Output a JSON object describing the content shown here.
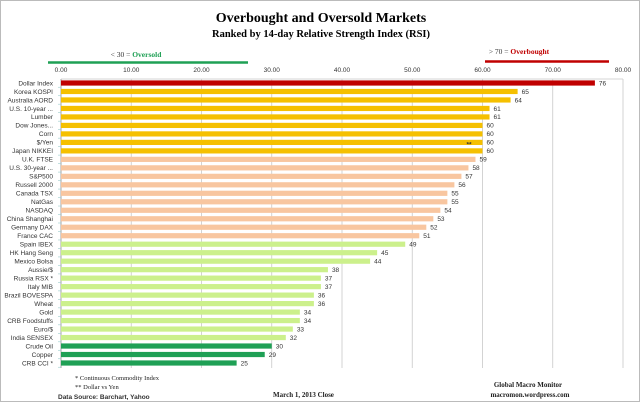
{
  "chart_data": {
    "type": "bar",
    "orientation": "horizontal",
    "title": "Overbought and Oversold Markets",
    "subtitle": "Ranked by 14-day Relative Strength Index (RSI)",
    "xlim": [
      0,
      80
    ],
    "x_ticks": [
      "0.00",
      "10.00",
      "20.00",
      "30.00",
      "40.00",
      "50.00",
      "60.00",
      "70.00",
      "80.00"
    ],
    "grid": true,
    "oversold_label": {
      "prefix": "< 30 = ",
      "word": "Oversold"
    },
    "overbought_label": {
      "prefix": "> 70 = ",
      "word": "Overbought"
    },
    "colors": {
      "overbought": "#c00000",
      "high": "#f5c000",
      "upper_mid": "#f8c6a0",
      "lower_mid": "#ccf08c",
      "oversold": "#1fa055",
      "oversold_text": "#1fa055",
      "overbought_text": "#c00000"
    },
    "categories": [
      "Dollar Index",
      "Korea KOSPI",
      "Australia AORD",
      "U.S. 10-year ...",
      "Lumber",
      "Dow Jones...",
      "Corn",
      "$/Yen",
      "Japan NIKKEI",
      "U.K. FTSE",
      "U.S. 30-year ...",
      "S&P500",
      "Russell 2000",
      "Canada TSX",
      "NatGas",
      "NASDAQ",
      "China Shanghai",
      "Germany DAX",
      "France CAC",
      "Spain IBEX",
      "HK  Hang Seng",
      "Mexico Bolsa",
      "Aussie/$",
      "Russia RSX *",
      "Italy  MIB",
      "Brazil BOVESPA",
      "Wheat",
      "Gold",
      "CRB Foodstuffs",
      "Euro/$",
      "India SENSEX",
      "Crude Oil",
      "Copper",
      "CRB CCI *"
    ],
    "values": [
      76,
      65,
      64,
      61,
      61,
      60,
      60,
      60,
      60,
      59,
      58,
      57,
      56,
      55,
      55,
      54,
      53,
      52,
      51,
      49,
      45,
      44,
      38,
      37,
      37,
      36,
      36,
      34,
      34,
      33,
      32,
      30,
      29,
      25
    ],
    "color_groups": [
      "overbought",
      "high",
      "high",
      "high",
      "high",
      "high",
      "high",
      "high",
      "high",
      "upper_mid",
      "upper_mid",
      "upper_mid",
      "upper_mid",
      "upper_mid",
      "upper_mid",
      "upper_mid",
      "upper_mid",
      "upper_mid",
      "upper_mid",
      "lower_mid",
      "lower_mid",
      "lower_mid",
      "lower_mid",
      "lower_mid",
      "lower_mid",
      "lower_mid",
      "lower_mid",
      "lower_mid",
      "lower_mid",
      "lower_mid",
      "lower_mid",
      "oversold",
      "oversold",
      "oversold"
    ],
    "annotations": [
      {
        "category": "$/Yen",
        "text": "**"
      }
    ]
  },
  "footer": {
    "note1": "* Continuous Commodity Index",
    "note2": "** Dollar vs Yen",
    "source": "Data Source:  Barchart,  Yahoo",
    "date": "March 1, 2013  Close",
    "brand": "Global Macro Monitor",
    "site": "macromon.wordpress.com"
  }
}
